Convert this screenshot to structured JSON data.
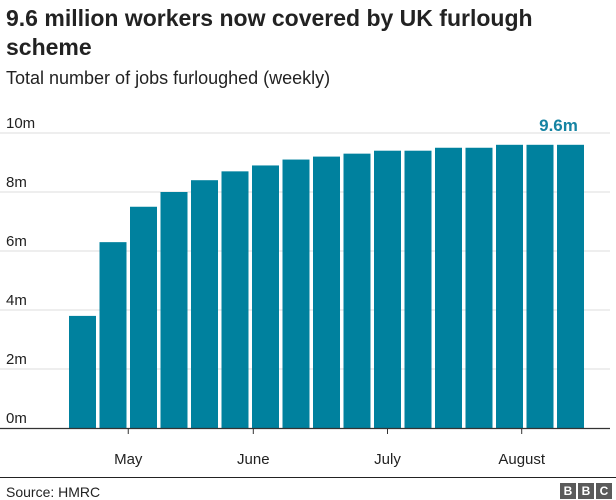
{
  "header": {
    "title": "9.6 million workers now covered by UK furlough scheme",
    "subtitle": "Total number of jobs furloughed (weekly)"
  },
  "footer": {
    "source": "Source: HMRC",
    "logo": [
      "B",
      "B",
      "C"
    ]
  },
  "colors": {
    "bar": "#00819e",
    "highlight_label": "#1584a3",
    "grid": "#dcdcdc",
    "axis": "#333333",
    "text": "#222222"
  },
  "chart_data": {
    "type": "bar",
    "title": "9.6 million workers now covered by UK furlough scheme",
    "subtitle": "Total number of jobs furloughed (weekly)",
    "unit": "m",
    "values": [
      3.8,
      6.3,
      7.5,
      8.0,
      8.4,
      8.7,
      8.9,
      9.1,
      9.2,
      9.3,
      9.4,
      9.4,
      9.5,
      9.5,
      9.6,
      9.6,
      9.6
    ],
    "yticks": [
      {
        "value": 0,
        "label": "0m"
      },
      {
        "value": 2,
        "label": "2m"
      },
      {
        "value": 4,
        "label": "4m"
      },
      {
        "value": 6,
        "label": "6m"
      },
      {
        "value": 8,
        "label": "8m"
      },
      {
        "value": 10,
        "label": "10m"
      }
    ],
    "ylim": [
      0,
      10
    ],
    "xticks": [
      {
        "position": 1.5,
        "label": "May"
      },
      {
        "position": 5.6,
        "label": "June"
      },
      {
        "position": 10.0,
        "label": "July"
      },
      {
        "position": 14.4,
        "label": "August"
      }
    ],
    "annotation": {
      "index": 16,
      "label": "9.6m"
    },
    "grid": true
  }
}
